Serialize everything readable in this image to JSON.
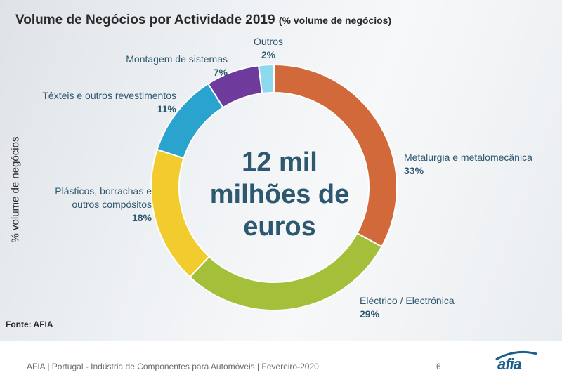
{
  "title": "Volume de Negócios por Actividade 2019",
  "subtitle": "(% volume de negócios)",
  "ylabel": "% volume de negócios",
  "source": "Fonte: AFIA",
  "footer": "AFIA | Portugal - Indústria de Componentes para Automóveis | Fevereiro-2020",
  "page_number": "6",
  "logo_text": "afia",
  "center_line1": "12 mil",
  "center_line2": "milhões de",
  "center_line3": "euros",
  "chart_data": {
    "type": "pie",
    "title": "Volume de Negócios por Actividade 2019",
    "subtitle": "(% volume de negócios)",
    "ylabel": "% volume de negócios",
    "donut": true,
    "categories": [
      "Metalurgia e metalomecânica",
      "Eléctrico / Electrónica",
      "Plásticos, borrachas e outros compósitos",
      "Têxteis e outros revestimentos",
      "Montagem de sistemas",
      "Outros"
    ],
    "values": [
      33,
      29,
      18,
      11,
      7,
      2
    ],
    "value_labels": [
      "33%",
      "29%",
      "18%",
      "11%",
      "7%",
      "2%"
    ],
    "colors": [
      "#d2693a",
      "#a4c03b",
      "#f2cb2e",
      "#2aa3cf",
      "#6e3a9c",
      "#8fd9ef"
    ]
  },
  "labels": {
    "metal_line": "Metalurgia e metalomecânica",
    "electric_line": "Eléctrico / Electrónica",
    "plastic_line1": "Plásticos, borrachas e",
    "plastic_line2": "outros compósitos",
    "textile_line": "Têxteis e outros revestimentos",
    "assembly_line": "Montagem de sistemas",
    "other_line": "Outros"
  }
}
